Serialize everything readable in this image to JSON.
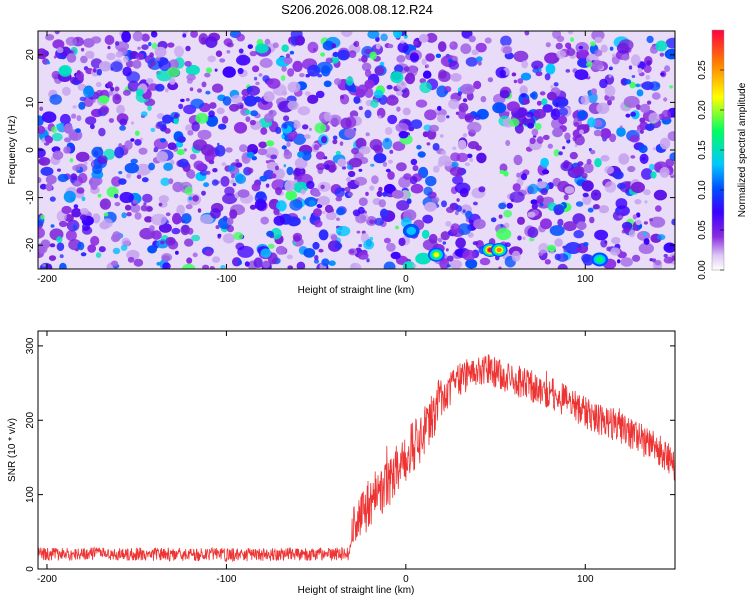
{
  "title": "S206.2026.008.08.12.R24",
  "chart_data": [
    {
      "type": "heatmap",
      "xlabel": "Height of straight line (km)",
      "ylabel": "Frequency (Hz)",
      "xlim": [
        -205,
        150
      ],
      "ylim": [
        -25,
        25
      ],
      "xticks": [
        -200,
        -100,
        0,
        100
      ],
      "yticks": [
        -20,
        -10,
        0,
        10,
        20
      ],
      "colorbar": {
        "label": "Normalized spectral amplitude",
        "range": [
          0,
          0.3
        ],
        "ticks": [
          "0.00",
          "0.05",
          "0.10",
          "0.15",
          "0.20",
          "0.25"
        ],
        "colors": [
          "#ffffff",
          "#ddc8f5",
          "#8a2be2",
          "#3a00ff",
          "#0050ff",
          "#00c8ff",
          "#00ff60",
          "#ffff00",
          "#ff8000",
          "#ff0040"
        ]
      },
      "hotspots": [
        {
          "x": 47,
          "y": -21,
          "value": 0.28
        },
        {
          "x": 52,
          "y": -21,
          "value": 0.26
        },
        {
          "x": 17,
          "y": -22,
          "value": 0.18
        },
        {
          "x": 108,
          "y": -23,
          "value": 0.14
        },
        {
          "x": 3,
          "y": -17,
          "value": 0.1
        }
      ]
    },
    {
      "type": "line",
      "xlabel": "Height of straight line (km)",
      "ylabel": "SNR (10 * v/v)",
      "xlim": [
        -205,
        150
      ],
      "ylim": [
        0,
        320
      ],
      "xticks": [
        -200,
        -100,
        0,
        100
      ],
      "yticks": [
        0,
        100,
        200,
        300
      ],
      "series": [
        {
          "name": "SNR",
          "color": "#ee3333",
          "x": [
            -205,
            -150,
            -100,
            -50,
            -32,
            -28,
            -20,
            -10,
            0,
            10,
            20,
            30,
            40,
            45,
            50,
            60,
            80,
            100,
            120,
            140,
            150
          ],
          "y": [
            20,
            20,
            19,
            20,
            20,
            60,
            90,
            115,
            150,
            185,
            230,
            255,
            268,
            272,
            265,
            255,
            238,
            210,
            190,
            162,
            140
          ]
        }
      ]
    }
  ]
}
